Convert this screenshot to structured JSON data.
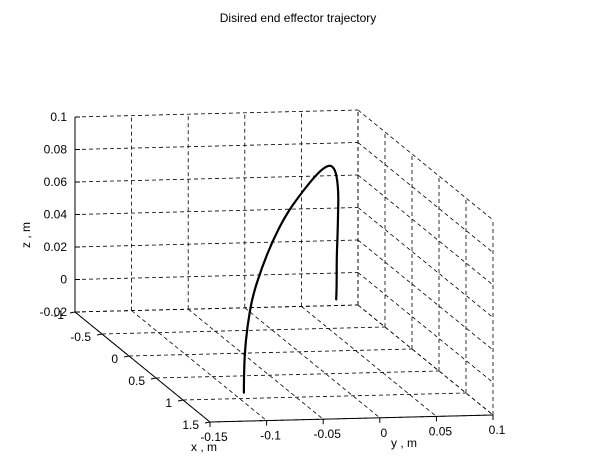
{
  "chart_data": {
    "type": "line",
    "title": "Disired end effector trajectory",
    "xlabel": "x , m",
    "ylabel": "y , m",
    "zlabel": "z , m",
    "xlim": [
      -1,
      1.5
    ],
    "ylim": [
      -0.15,
      0.1
    ],
    "zlim": [
      -0.02,
      0.1
    ],
    "x_ticks": [
      "-1",
      "-0.5",
      "0",
      "0.5",
      "1",
      "1.5"
    ],
    "y_ticks": [
      "-0.15",
      "-0.1",
      "-0.05",
      "0",
      "0.05",
      "0.1"
    ],
    "z_ticks": [
      "-0.02",
      "0",
      "0.02",
      "0.04",
      "0.06",
      "0.08",
      "0.1"
    ],
    "grid": true,
    "series": [
      {
        "x": [
          0.87,
          0.87,
          0.86,
          0.83,
          0.78,
          0.7,
          0.6,
          0.48,
          0.35,
          0.2,
          0.05,
          -0.09,
          -0.22,
          -0.34,
          -0.44,
          -0.53,
          -0.6,
          -0.64,
          -0.66,
          -0.67
        ],
        "y": [
          -0.09,
          -0.09,
          -0.089,
          -0.085,
          -0.078,
          -0.066,
          -0.052,
          -0.035,
          -0.016,
          0.003,
          0.019,
          0.032,
          0.042,
          0.05,
          0.056,
          0.06,
          0.063,
          0.064,
          0.065,
          0.065
        ],
        "z": [
          -0.02,
          -0.014,
          0.002,
          0.02,
          0.037,
          0.052,
          0.065,
          0.077,
          0.086,
          0.092,
          0.094,
          0.092,
          0.086,
          0.077,
          0.065,
          0.052,
          0.036,
          0.02,
          0.004,
          -0.007
        ]
      }
    ]
  }
}
